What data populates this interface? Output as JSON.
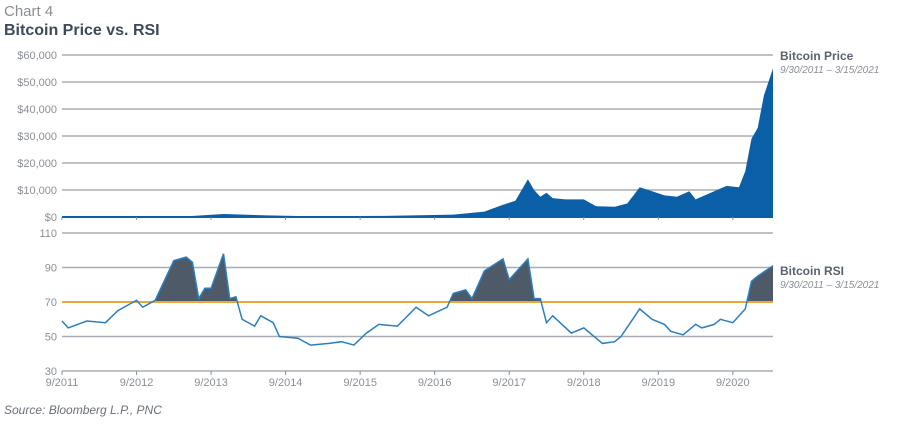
{
  "header": {
    "label": "Chart 4",
    "title": "Bitcoin Price vs. RSI"
  },
  "source": "Source: Bloomberg L.P., PNC",
  "chart_data": [
    {
      "type": "area",
      "series": [
        {
          "name": "Bitcoin Price",
          "color": "#0a5fa6",
          "points": [
            [
              "2011-09",
              5
            ],
            [
              "2012-06",
              6
            ],
            [
              "2013-04",
              100
            ],
            [
              "2013-11",
              1100
            ],
            [
              "2014-06",
              600
            ],
            [
              "2015-01",
              250
            ],
            [
              "2016-01",
              400
            ],
            [
              "2016-12",
              900
            ],
            [
              "2017-05",
              2000
            ],
            [
              "2017-08",
              4500
            ],
            [
              "2017-10",
              6000
            ],
            [
              "2017-12",
              14000
            ],
            [
              "2018-01",
              10000
            ],
            [
              "2018-02",
              7500
            ],
            [
              "2018-03",
              9000
            ],
            [
              "2018-04",
              7000
            ],
            [
              "2018-06",
              6500
            ],
            [
              "2018-09",
              6500
            ],
            [
              "2018-11",
              4000
            ],
            [
              "2019-02",
              3800
            ],
            [
              "2019-04",
              5000
            ],
            [
              "2019-06",
              11000
            ],
            [
              "2019-08",
              9500
            ],
            [
              "2019-10",
              8000
            ],
            [
              "2019-12",
              7500
            ],
            [
              "2020-02",
              9500
            ],
            [
              "2020-03",
              6500
            ],
            [
              "2020-06",
              9500
            ],
            [
              "2020-08",
              11500
            ],
            [
              "2020-10",
              11000
            ],
            [
              "2020-11",
              17000
            ],
            [
              "2020-12",
              29000
            ],
            [
              "2021-01",
              33000
            ],
            [
              "2021-02",
              45000
            ],
            [
              "2021-03-15",
              55000
            ]
          ]
        }
      ],
      "legend_date_range": "9/30/2011 – 3/15/2021",
      "ylim": [
        0,
        60000
      ],
      "yticks": [
        "$0",
        "$10,000",
        "$20,000",
        "$30,000",
        "$40,000",
        "$50,000",
        "$60,000"
      ],
      "grid": true,
      "legend_placement": "right"
    },
    {
      "type": "line",
      "series": [
        {
          "name": "Bitcoin RSI",
          "color": "#2a7fc0",
          "fill_above_70_color": "#4f5a68",
          "points": [
            [
              "2011-09",
              59
            ],
            [
              "2011-10",
              55
            ],
            [
              "2012-01",
              59
            ],
            [
              "2012-04",
              58
            ],
            [
              "2012-06",
              65
            ],
            [
              "2012-09",
              71
            ],
            [
              "2012-10",
              67
            ],
            [
              "2012-12",
              71
            ],
            [
              "2013-03",
              94
            ],
            [
              "2013-05",
              96
            ],
            [
              "2013-06",
              93
            ],
            [
              "2013-07",
              72
            ],
            [
              "2013-08",
              78
            ],
            [
              "2013-09",
              78
            ],
            [
              "2013-11",
              98
            ],
            [
              "2013-12",
              72
            ],
            [
              "2014-01",
              73
            ],
            [
              "2014-02",
              60
            ],
            [
              "2014-04",
              56
            ],
            [
              "2014-05",
              62
            ],
            [
              "2014-07",
              58
            ],
            [
              "2014-08",
              50
            ],
            [
              "2014-11",
              49
            ],
            [
              "2015-01",
              45
            ],
            [
              "2015-04",
              46
            ],
            [
              "2015-06",
              47
            ],
            [
              "2015-08",
              45
            ],
            [
              "2015-10",
              52
            ],
            [
              "2015-12",
              57
            ],
            [
              "2016-03",
              56
            ],
            [
              "2016-06",
              67
            ],
            [
              "2016-08",
              62
            ],
            [
              "2016-11",
              67
            ],
            [
              "2016-12",
              75
            ],
            [
              "2017-02",
              77
            ],
            [
              "2017-03",
              72
            ],
            [
              "2017-05",
              88
            ],
            [
              "2017-08",
              95
            ],
            [
              "2017-09",
              83
            ],
            [
              "2017-12",
              95
            ],
            [
              "2018-01",
              72
            ],
            [
              "2018-02",
              72
            ],
            [
              "2018-03",
              58
            ],
            [
              "2018-04",
              62
            ],
            [
              "2018-07",
              52
            ],
            [
              "2018-09",
              55
            ],
            [
              "2018-12",
              46
            ],
            [
              "2019-02",
              47
            ],
            [
              "2019-03",
              50
            ],
            [
              "2019-06",
              66
            ],
            [
              "2019-08",
              60
            ],
            [
              "2019-10",
              57
            ],
            [
              "2019-11",
              53
            ],
            [
              "2020-01",
              51
            ],
            [
              "2020-03",
              57
            ],
            [
              "2020-04",
              55
            ],
            [
              "2020-06",
              57
            ],
            [
              "2020-07",
              60
            ],
            [
              "2020-09",
              58
            ],
            [
              "2020-11",
              66
            ],
            [
              "2020-12",
              82
            ],
            [
              "2021-01",
              85
            ],
            [
              "2021-03-15",
              91
            ]
          ]
        }
      ],
      "reference_line": {
        "value": 70,
        "color": "#e8a93a"
      },
      "legend_date_range": "9/30/2011 – 3/15/2021",
      "ylim": [
        30,
        110
      ],
      "yticks": [
        "30",
        "50",
        "70",
        "90",
        "110"
      ],
      "xticks": [
        "9/2011",
        "9/2012",
        "9/2013",
        "9/2014",
        "9/2015",
        "9/2016",
        "9/2017",
        "9/2018",
        "9/2019",
        "9/2020"
      ],
      "grid": true,
      "legend_placement": "right"
    }
  ]
}
